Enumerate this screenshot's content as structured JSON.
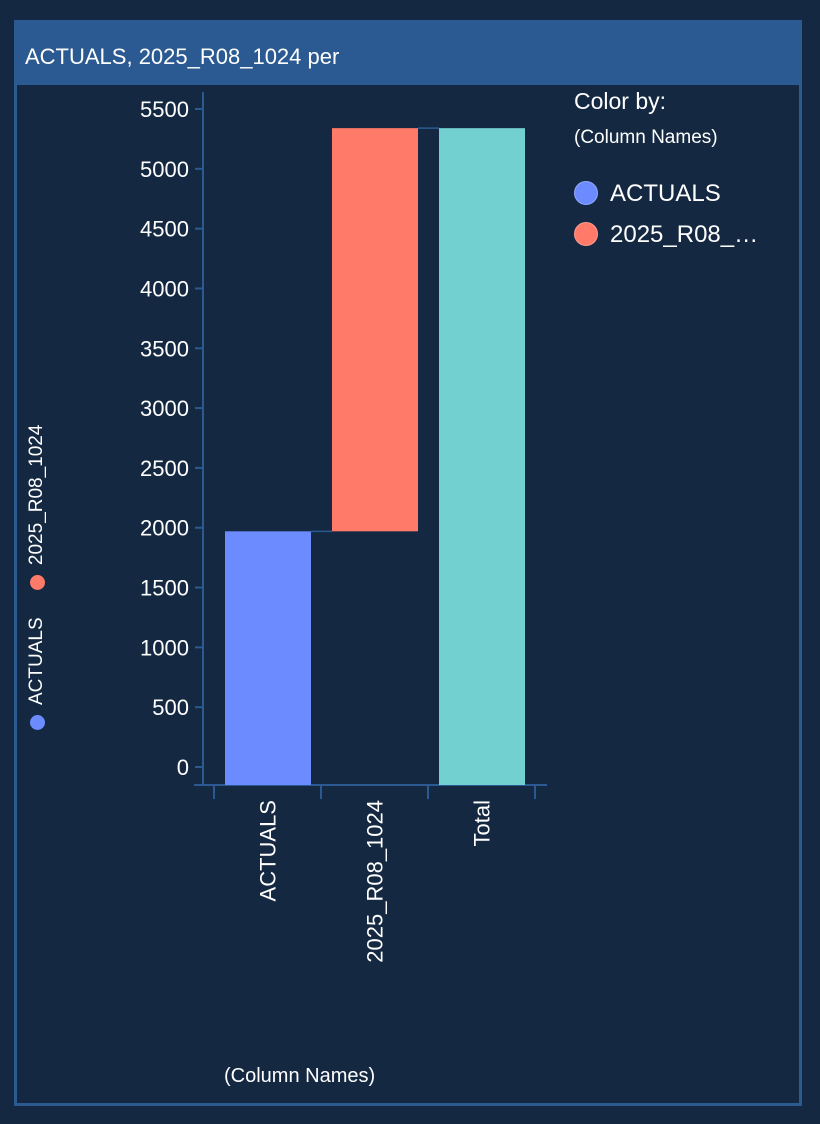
{
  "panel": {
    "title": "ACTUALS, 2025_R08_1024 per"
  },
  "legend": {
    "title": "Color by:",
    "subtitle": "(Column Names)",
    "items": [
      {
        "label": "ACTUALS",
        "color": "#6b8bff"
      },
      {
        "label": "2025_R08_…",
        "color": "#ff7a68"
      }
    ]
  },
  "side_legend": {
    "items": [
      {
        "label": "ACTUALS",
        "color": "#6b8bff"
      },
      {
        "label": "2025_R08_1024",
        "color": "#ff7a68"
      }
    ]
  },
  "colors": {
    "background": "#142841",
    "accent": "#2a5a91",
    "total": "#72d0d0"
  },
  "chart_data": {
    "type": "bar",
    "subtype": "waterfall",
    "categories": [
      "ACTUALS",
      "2025_R08_1024",
      "Total"
    ],
    "series": [
      {
        "name": "ACTUALS",
        "values": [
          1970,
          null,
          null
        ],
        "color": "#6b8bff"
      },
      {
        "name": "2025_R08_1024",
        "values": [
          null,
          3370,
          null
        ],
        "color": "#ff7a68"
      }
    ],
    "total": 5340,
    "total_color": "#72d0d0",
    "xlabel": "(Column Names)",
    "ylabel": "",
    "ylim": [
      0,
      5600
    ],
    "yticks": [
      0,
      500,
      1000,
      1500,
      2000,
      2500,
      3000,
      3500,
      4000,
      4500,
      5000,
      5500
    ],
    "grid": false,
    "legend_position": "top-right"
  }
}
